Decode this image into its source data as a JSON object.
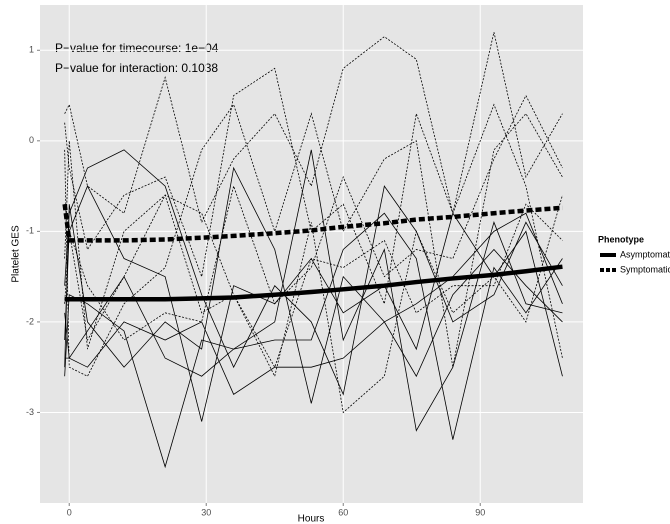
{
  "chart_data": {
    "type": "line",
    "xlabel": "Hours",
    "ylabel": "Platelet GES",
    "annotations": [
      "P−value for timecourse: 1e−04",
      "P−value for interaction: 0.1038"
    ],
    "legend_title": "Phenotype",
    "grid": true,
    "legend_position": "right",
    "xlim": [
      -6.4,
      112.5
    ],
    "ylim": [
      -4.0,
      1.5
    ],
    "xticks": [
      0,
      30,
      60,
      90
    ],
    "yticks": [
      -3,
      -2,
      -1,
      0,
      1
    ],
    "x": [
      -1,
      0,
      4,
      12,
      21,
      29,
      36,
      45,
      53,
      60,
      69,
      76,
      84,
      93,
      100,
      108
    ],
    "series": [
      {
        "name": "Asymptomatic",
        "color": "#000000",
        "linetype": "solid",
        "values": [
          -1.75,
          -1.75,
          -1.75,
          -1.75,
          -1.75,
          -1.74,
          -1.73,
          -1.7,
          -1.67,
          -1.64,
          -1.6,
          -1.56,
          -1.52,
          -1.48,
          -1.44,
          -1.39
        ]
      },
      {
        "name": "Symptomatic",
        "color": "#000000",
        "linetype": "dashed",
        "values": [
          -0.7,
          -1.1,
          -1.1,
          -1.1,
          -1.09,
          -1.07,
          -1.05,
          -1.02,
          -0.99,
          -0.95,
          -0.91,
          -0.87,
          -0.84,
          -0.8,
          -0.77,
          -0.74
        ]
      }
    ],
    "lines": [
      {
        "linetype": "solid",
        "values": [
          -2.5,
          -0.7,
          -2.0,
          -2.5,
          -2.0,
          -2.3,
          -0.3,
          -1.2,
          -2.9,
          -1.5,
          -2.0,
          -2.6,
          -1.7,
          -1.2,
          -1.6,
          -2.0
        ]
      },
      {
        "linetype": "solid",
        "values": [
          -2.6,
          -1.7,
          -1.8,
          -2.1,
          -3.6,
          -2.2,
          -2.3,
          -2.0,
          -0.1,
          -2.2,
          -1.2,
          -3.2,
          -2.5,
          -0.9,
          -1.8,
          -1.9
        ]
      },
      {
        "linetype": "solid",
        "values": [
          -2.2,
          -1.0,
          -0.5,
          -1.3,
          -1.5,
          -3.1,
          -1.6,
          -1.8,
          -1.3,
          -1.9,
          -1.6,
          -2.3,
          -0.8,
          -1.5,
          -1.0,
          -2.6
        ]
      },
      {
        "linetype": "solid",
        "values": [
          -1.9,
          -2.4,
          -2.1,
          -1.5,
          -2.4,
          -2.6,
          -2.3,
          -2.2,
          -2.2,
          -1.2,
          -0.8,
          -1.3,
          -3.3,
          -1.4,
          -1.9,
          -1.3
        ]
      },
      {
        "linetype": "solid",
        "values": [
          -1.6,
          -0.8,
          -0.3,
          -0.1,
          -0.5,
          -1.7,
          -2.5,
          -1.6,
          -2.0,
          -2.8,
          -0.5,
          -1.0,
          -2.0,
          -1.7,
          -0.9,
          -1.6
        ]
      },
      {
        "linetype": "solid",
        "values": [
          -2.4,
          -2.4,
          -2.5,
          -2.0,
          -2.2,
          -2.0,
          -2.8,
          -2.5,
          -2.5,
          -2.4,
          -2.0,
          -1.8,
          -1.5,
          -1.0,
          -0.8,
          -1.8
        ]
      },
      {
        "linetype": "dashed",
        "values": [
          0.3,
          0.4,
          -0.5,
          -0.8,
          0.7,
          -0.9,
          -0.2,
          0.3,
          -0.5,
          0.8,
          1.15,
          0.9,
          -0.8,
          1.2,
          -0.4,
          0.3
        ]
      },
      {
        "linetype": "dashed",
        "values": [
          0.2,
          -0.3,
          -1.2,
          -0.6,
          -0.4,
          -1.5,
          0.5,
          0.8,
          -1.0,
          -0.7,
          -1.8,
          0.3,
          -0.8,
          0.4,
          -0.5,
          -2.4
        ]
      },
      {
        "linetype": "dashed",
        "values": [
          -0.7,
          -1.0,
          -1.6,
          -2.2,
          -1.9,
          -2.0,
          -0.5,
          -1.8,
          -1.4,
          -0.4,
          -1.5,
          -1.2,
          -1.3,
          -0.2,
          0.5,
          -0.3
        ]
      },
      {
        "linetype": "dashed",
        "values": [
          -1.3,
          0.0,
          -2.3,
          -1.0,
          -0.6,
          -0.8,
          -1.7,
          -2.6,
          -0.9,
          -3.0,
          -2.6,
          -1.0,
          -1.9,
          -1.5,
          -2.0,
          -0.6
        ]
      },
      {
        "linetype": "dashed",
        "values": [
          -0.1,
          -2.5,
          -2.6,
          -1.8,
          -1.4,
          -0.1,
          0.4,
          -1.0,
          0.3,
          -1.0,
          -0.2,
          0.0,
          -2.5,
          -0.1,
          0.3,
          -0.4
        ]
      },
      {
        "linetype": "dashed",
        "values": [
          -1.8,
          -1.0,
          -2.2,
          -1.5,
          -0.6,
          -1.9,
          -1.7,
          -2.5,
          -1.3,
          -1.4,
          -1.1,
          -1.9,
          -1.6,
          -1.6,
          -0.7,
          -1.1
        ]
      }
    ]
  }
}
